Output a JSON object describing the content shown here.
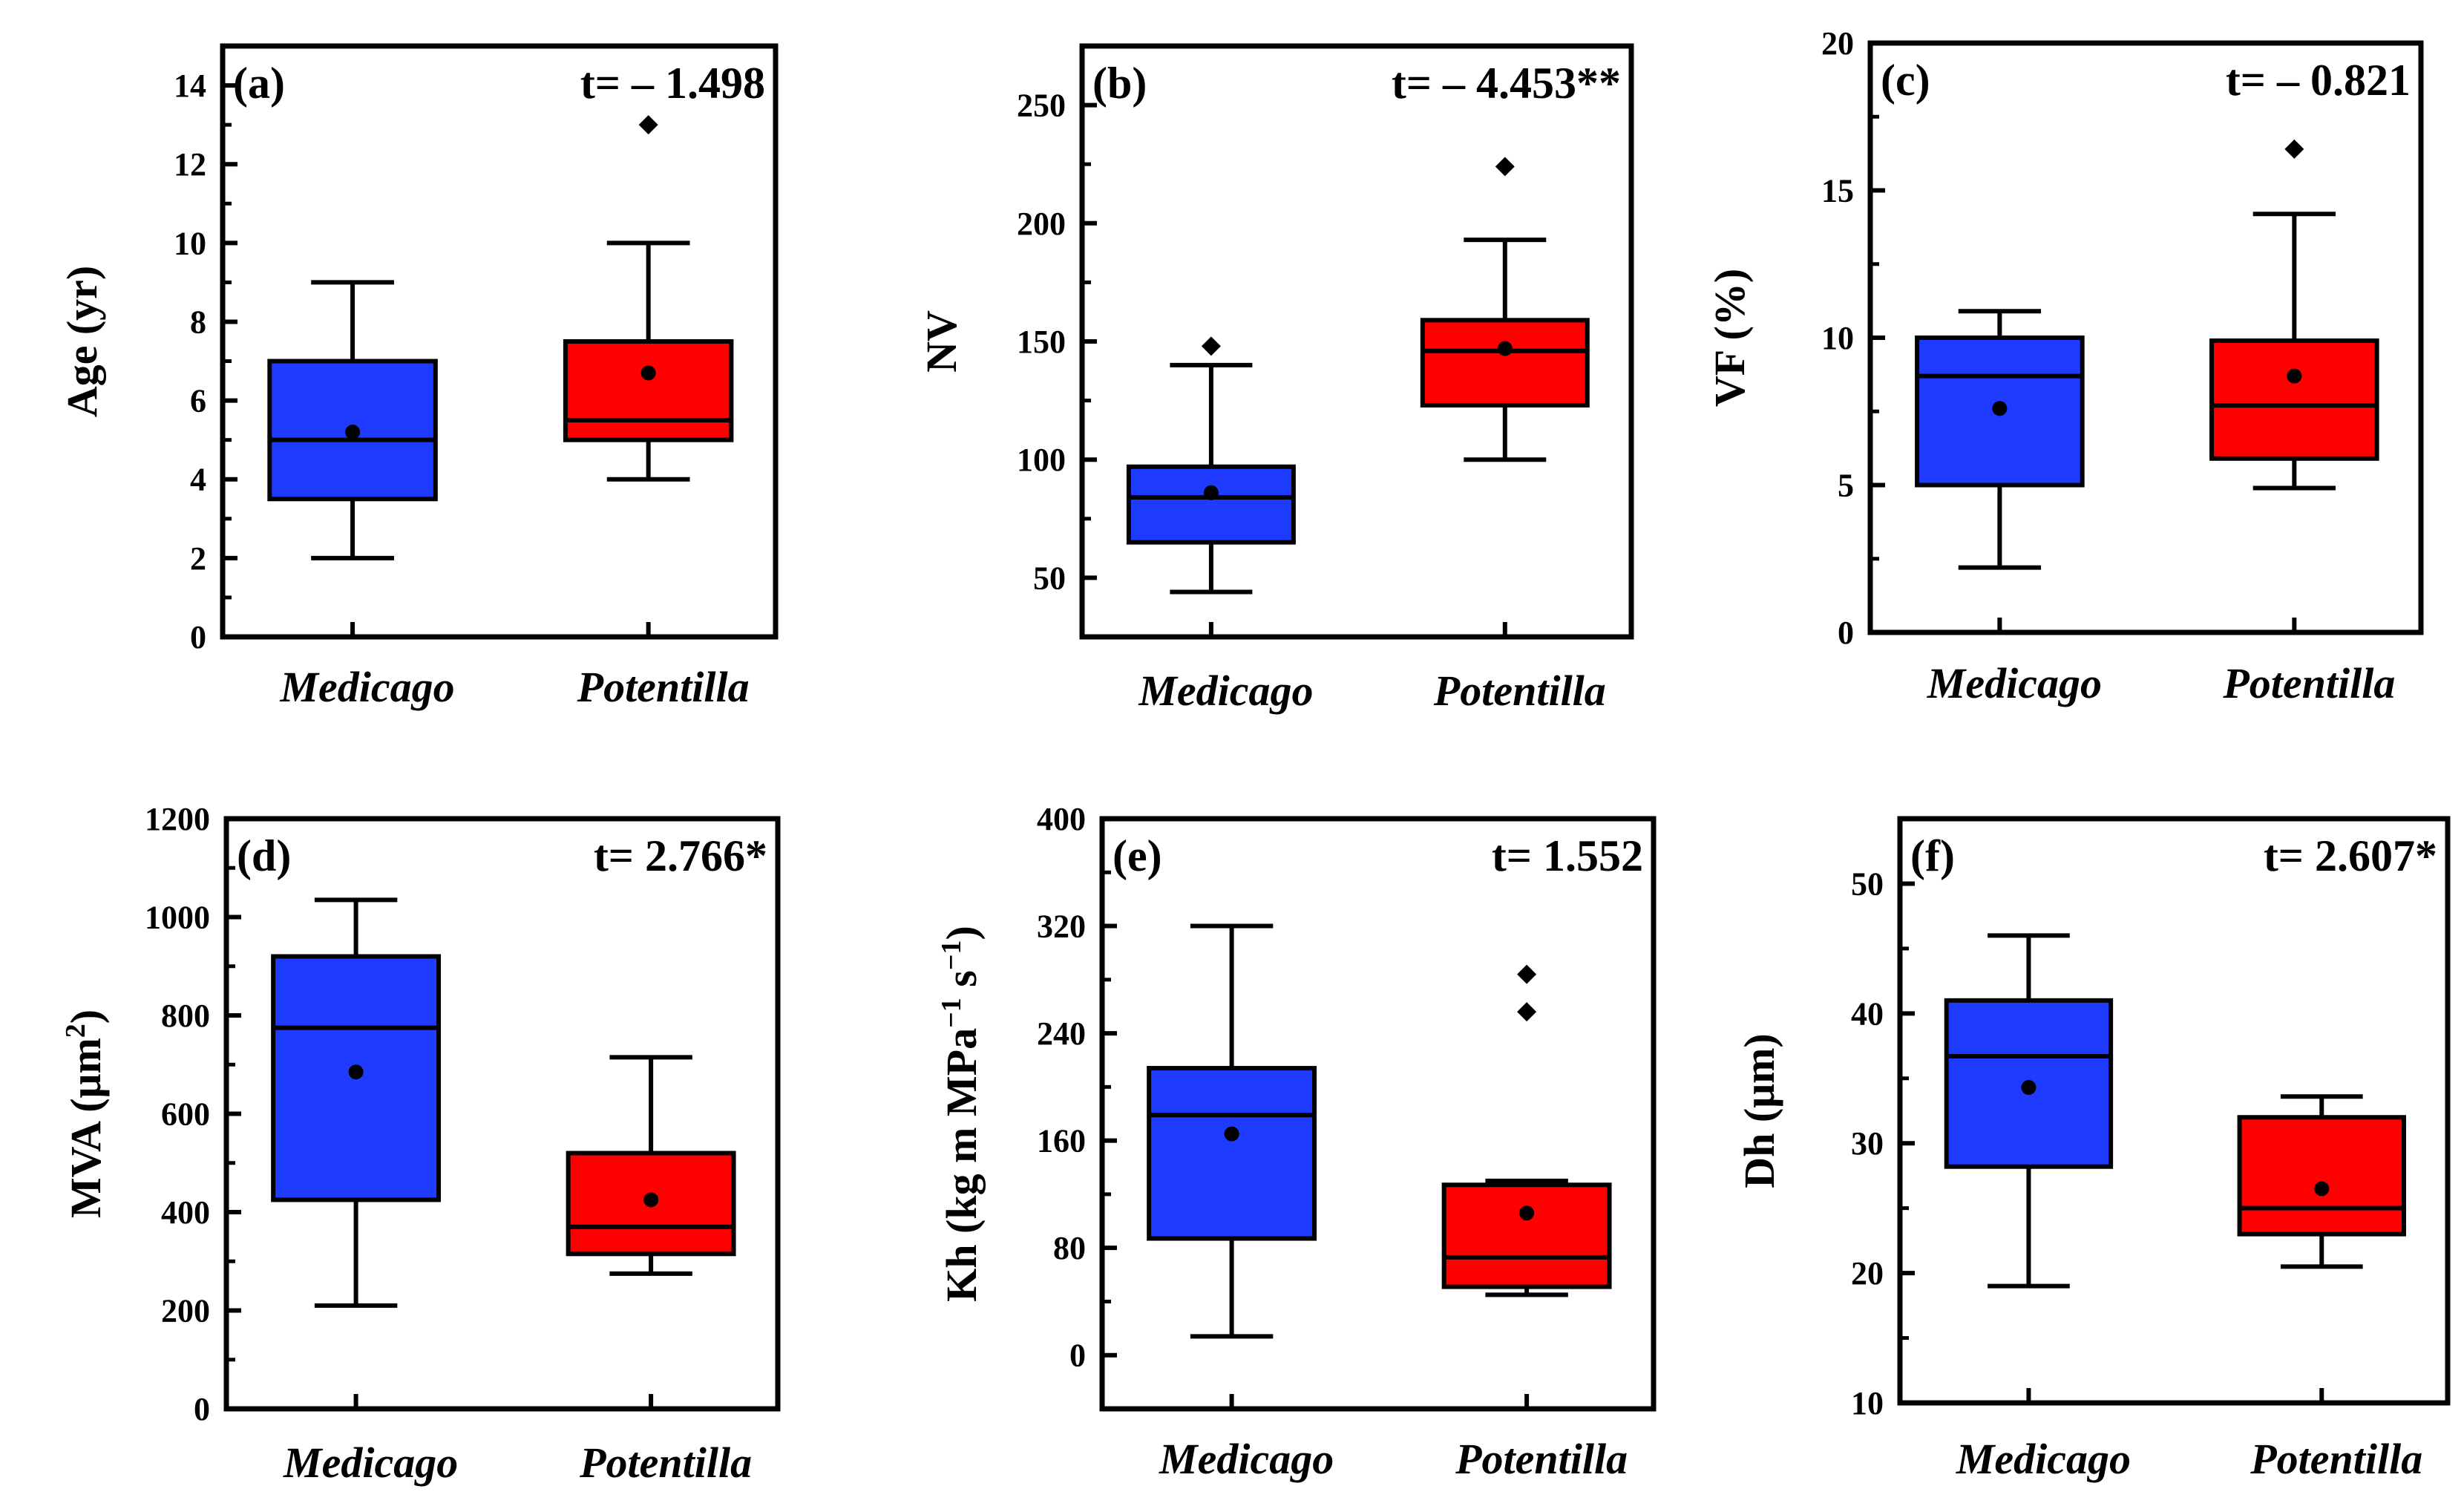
{
  "colors": {
    "Medicago": "#1f3bff",
    "Potentilla": "#ff0000",
    "outline": "#000000"
  },
  "chart_data": [
    {
      "type": "box",
      "panel": "(a)",
      "t_stat": "t= – 1.498",
      "ylabel": "Age (yr)",
      "ylim": [
        0,
        15
      ],
      "yticks": [
        0,
        2,
        4,
        6,
        8,
        10,
        12,
        14
      ],
      "ytick_labels": [
        "0",
        "2",
        "4",
        "6",
        "8",
        "10",
        "12",
        "14"
      ],
      "categories": [
        "Medicago",
        "Potentilla"
      ],
      "series": [
        {
          "name": "Medicago",
          "min": 2,
          "q1": 3.5,
          "median": 5,
          "q3": 7,
          "max": 9,
          "mean": 5.2,
          "outliers": []
        },
        {
          "name": "Potentilla",
          "min": 4,
          "q1": 5,
          "median": 5.5,
          "q3": 7.5,
          "max": 10,
          "mean": 6.7,
          "outliers": [
            13
          ]
        }
      ]
    },
    {
      "type": "box",
      "panel": "(b)",
      "t_stat": "t= – 4.453**",
      "ylabel": "NV",
      "ylim": [
        25,
        275
      ],
      "yticks": [
        50,
        100,
        150,
        200,
        250
      ],
      "ytick_labels": [
        "50",
        "100",
        "150",
        "200",
        "250"
      ],
      "categories": [
        "Medicago",
        "Potentilla"
      ],
      "series": [
        {
          "name": "Medicago",
          "min": 44,
          "q1": 65,
          "median": 84,
          "q3": 97,
          "max": 140,
          "mean": 86,
          "outliers": [
            148
          ]
        },
        {
          "name": "Potentilla",
          "min": 100,
          "q1": 123,
          "median": 146,
          "q3": 159,
          "max": 193,
          "mean": 147,
          "outliers": [
            224
          ]
        }
      ]
    },
    {
      "type": "box",
      "panel": "(c)",
      "t_stat": "t= – 0.821",
      "ylabel": "VF (%)",
      "ylim": [
        0,
        20
      ],
      "yticks": [
        0,
        5,
        10,
        15,
        20
      ],
      "ytick_labels": [
        "0",
        "5",
        "10",
        "15",
        "20"
      ],
      "categories": [
        "Medicago",
        "Potentilla"
      ],
      "series": [
        {
          "name": "Medicago",
          "min": 2.2,
          "q1": 5,
          "median": 8.7,
          "q3": 10,
          "max": 10.9,
          "mean": 7.6,
          "outliers": []
        },
        {
          "name": "Potentilla",
          "min": 4.9,
          "q1": 5.9,
          "median": 7.7,
          "q3": 9.9,
          "max": 14.2,
          "mean": 8.7,
          "outliers": [
            16.4
          ]
        }
      ]
    },
    {
      "type": "box",
      "panel": "(d)",
      "t_stat": "t= 2.766*",
      "ylabel": "MVA (μm",
      "ylabel_sup": "2",
      "ylabel_end": ")",
      "ylim": [
        0,
        1200
      ],
      "yticks": [
        0,
        200,
        400,
        600,
        800,
        1000,
        1200
      ],
      "ytick_labels": [
        "0",
        "200",
        "400",
        "600",
        "800",
        "1000",
        "1200"
      ],
      "categories": [
        "Medicago",
        "Potentilla"
      ],
      "series": [
        {
          "name": "Medicago",
          "min": 210,
          "q1": 425,
          "median": 775,
          "q3": 920,
          "max": 1035,
          "mean": 685,
          "outliers": []
        },
        {
          "name": "Potentilla",
          "min": 275,
          "q1": 315,
          "median": 370,
          "q3": 520,
          "max": 715,
          "mean": 425,
          "outliers": []
        }
      ]
    },
    {
      "type": "box",
      "panel": "(e)",
      "t_stat": "t= 1.552",
      "ylabel_parts": [
        "Kh (kg m MPa",
        "−1",
        " s",
        "−1",
        ")"
      ],
      "ylim": [
        -40,
        400
      ],
      "yticks": [
        0,
        80,
        160,
        240,
        320,
        400
      ],
      "ytick_labels": [
        "0",
        "80",
        "160",
        "240",
        "320",
        "400"
      ],
      "categories": [
        "Medicago",
        "Potentilla"
      ],
      "series": [
        {
          "name": "Medicago",
          "min": 14,
          "q1": 87,
          "median": 179,
          "q3": 214,
          "max": 320,
          "mean": 165,
          "outliers": []
        },
        {
          "name": "Potentilla",
          "min": 45,
          "q1": 51,
          "median": 73,
          "q3": 127,
          "max": 130,
          "mean": 106,
          "outliers": [
            256,
            284
          ]
        }
      ]
    },
    {
      "type": "box",
      "panel": "(f)",
      "t_stat": "t= 2.607*",
      "ylabel": "Dh (μm)",
      "ylim": [
        10,
        55
      ],
      "yticks": [
        10,
        20,
        30,
        40,
        50
      ],
      "ytick_labels": [
        "10",
        "20",
        "30",
        "40",
        "50"
      ],
      "categories": [
        "Medicago",
        "Potentilla"
      ],
      "series": [
        {
          "name": "Medicago",
          "min": 19,
          "q1": 28.2,
          "median": 36.7,
          "q3": 41,
          "max": 46,
          "mean": 34.3,
          "outliers": []
        },
        {
          "name": "Potentilla",
          "min": 20.5,
          "q1": 23,
          "median": 25,
          "q3": 32,
          "max": 33.6,
          "mean": 26.5,
          "outliers": []
        }
      ]
    }
  ]
}
